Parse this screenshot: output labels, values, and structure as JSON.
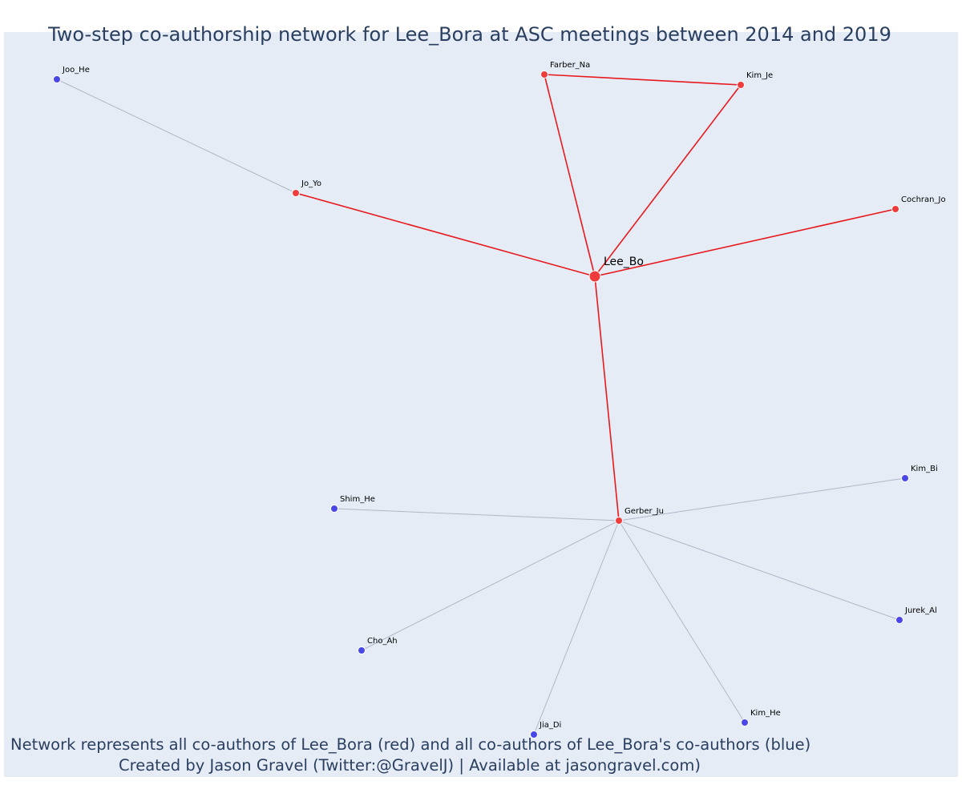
{
  "title": "Two-step co-authorship network for Lee_Bora at ASC meetings between 2014 and 2019",
  "footer": {
    "line1": "Network represents all co-authors of Lee_Bora (red) and all co-authors of Lee_Bora's co-authors (blue)",
    "line2": "Created by Jason Gravel (Twitter:@GravelJ) | Available at jasongravel.com)"
  },
  "colors": {
    "background": "#e5ecf6",
    "direct_coauthor": "#ef3b3b",
    "second_step_coauthor": "#4a47e8",
    "direct_edge": "#e8191c",
    "second_step_edge": "#b3b6c6",
    "text": "#2a3f5f"
  },
  "chart_data": {
    "type": "network",
    "center": "Lee_Bo",
    "nodes": [
      {
        "id": "Lee_Bo",
        "label": "Lee_Bo",
        "group": "center"
      },
      {
        "id": "Farber_Na",
        "label": "Farber_Na",
        "group": "coauthor"
      },
      {
        "id": "Kim_Je",
        "label": "Kim_Je",
        "group": "coauthor"
      },
      {
        "id": "Jo_Yo",
        "label": "Jo_Yo",
        "group": "coauthor"
      },
      {
        "id": "Cochran_Jo",
        "label": "Cochran_Jo",
        "group": "coauthor"
      },
      {
        "id": "Gerber_Ju",
        "label": "Gerber_Ju",
        "group": "coauthor"
      },
      {
        "id": "Joo_He",
        "label": "Joo_He",
        "group": "second"
      },
      {
        "id": "Shim_He",
        "label": "Shim_He",
        "group": "second"
      },
      {
        "id": "Kim_Bi",
        "label": "Kim_Bi",
        "group": "second"
      },
      {
        "id": "Jurek_Al",
        "label": "Jurek_Al",
        "group": "second"
      },
      {
        "id": "Cho_Ah",
        "label": "Cho_Ah",
        "group": "second"
      },
      {
        "id": "Jia_Di",
        "label": "Jia_Di",
        "group": "second"
      },
      {
        "id": "Kim_He",
        "label": "Kim_He",
        "group": "second"
      }
    ],
    "edges": [
      {
        "source": "Lee_Bo",
        "target": "Farber_Na",
        "type": "direct"
      },
      {
        "source": "Lee_Bo",
        "target": "Kim_Je",
        "type": "direct"
      },
      {
        "source": "Farber_Na",
        "target": "Kim_Je",
        "type": "direct"
      },
      {
        "source": "Lee_Bo",
        "target": "Jo_Yo",
        "type": "direct"
      },
      {
        "source": "Lee_Bo",
        "target": "Cochran_Jo",
        "type": "direct"
      },
      {
        "source": "Lee_Bo",
        "target": "Gerber_Ju",
        "type": "direct"
      },
      {
        "source": "Jo_Yo",
        "target": "Joo_He",
        "type": "second"
      },
      {
        "source": "Gerber_Ju",
        "target": "Shim_He",
        "type": "second"
      },
      {
        "source": "Gerber_Ju",
        "target": "Kim_Bi",
        "type": "second"
      },
      {
        "source": "Gerber_Ju",
        "target": "Jurek_Al",
        "type": "second"
      },
      {
        "source": "Gerber_Ju",
        "target": "Cho_Ah",
        "type": "second"
      },
      {
        "source": "Gerber_Ju",
        "target": "Jia_Di",
        "type": "second"
      },
      {
        "source": "Gerber_Ju",
        "target": "Kim_He",
        "type": "second"
      }
    ]
  }
}
